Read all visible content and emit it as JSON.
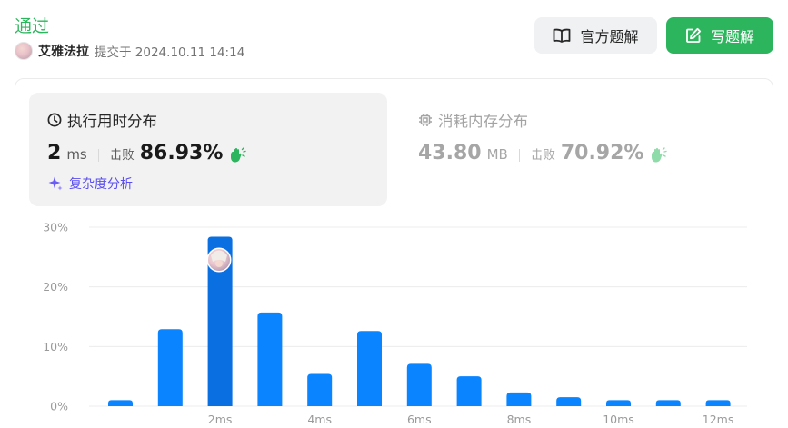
{
  "header": {
    "status": "通过",
    "username": "艾雅法拉",
    "submit_time": "提交于 2024.10.11 14:14"
  },
  "buttons": {
    "official_solution": "官方题解",
    "write_solution": "写题解"
  },
  "runtime": {
    "title": "执行用时分布",
    "value": "2",
    "unit": "ms",
    "beat_label": "击败",
    "beat_percent": "86.93%",
    "analysis_link": "复杂度分析"
  },
  "memory": {
    "title": "消耗内存分布",
    "value": "43.80",
    "unit": "MB",
    "beat_label": "击败",
    "beat_percent": "70.92%"
  },
  "colors": {
    "accent_green": "#2db55d",
    "bar_blue": "#0a84ff",
    "bar_highlight": "#0a6fe0",
    "analysis_purple": "#5b4ef0"
  },
  "chart_data": {
    "type": "bar",
    "x": [
      0,
      1,
      2,
      3,
      4,
      5,
      6,
      7,
      8,
      9,
      10,
      11,
      12
    ],
    "values": [
      1.0,
      12.9,
      28.4,
      15.7,
      5.4,
      12.6,
      7.1,
      5.0,
      2.3,
      1.5,
      1.0,
      1.0,
      1.0
    ],
    "highlight_index": 2,
    "x_ticks": [
      2,
      4,
      6,
      8,
      10,
      12
    ],
    "x_tick_labels": [
      "2ms",
      "4ms",
      "6ms",
      "8ms",
      "10ms",
      "12ms"
    ],
    "y_ticks": [
      0,
      10,
      20,
      30
    ],
    "y_tick_labels": [
      "0%",
      "10%",
      "20%",
      "30%"
    ],
    "ylim": [
      0,
      30
    ],
    "grid": true
  }
}
